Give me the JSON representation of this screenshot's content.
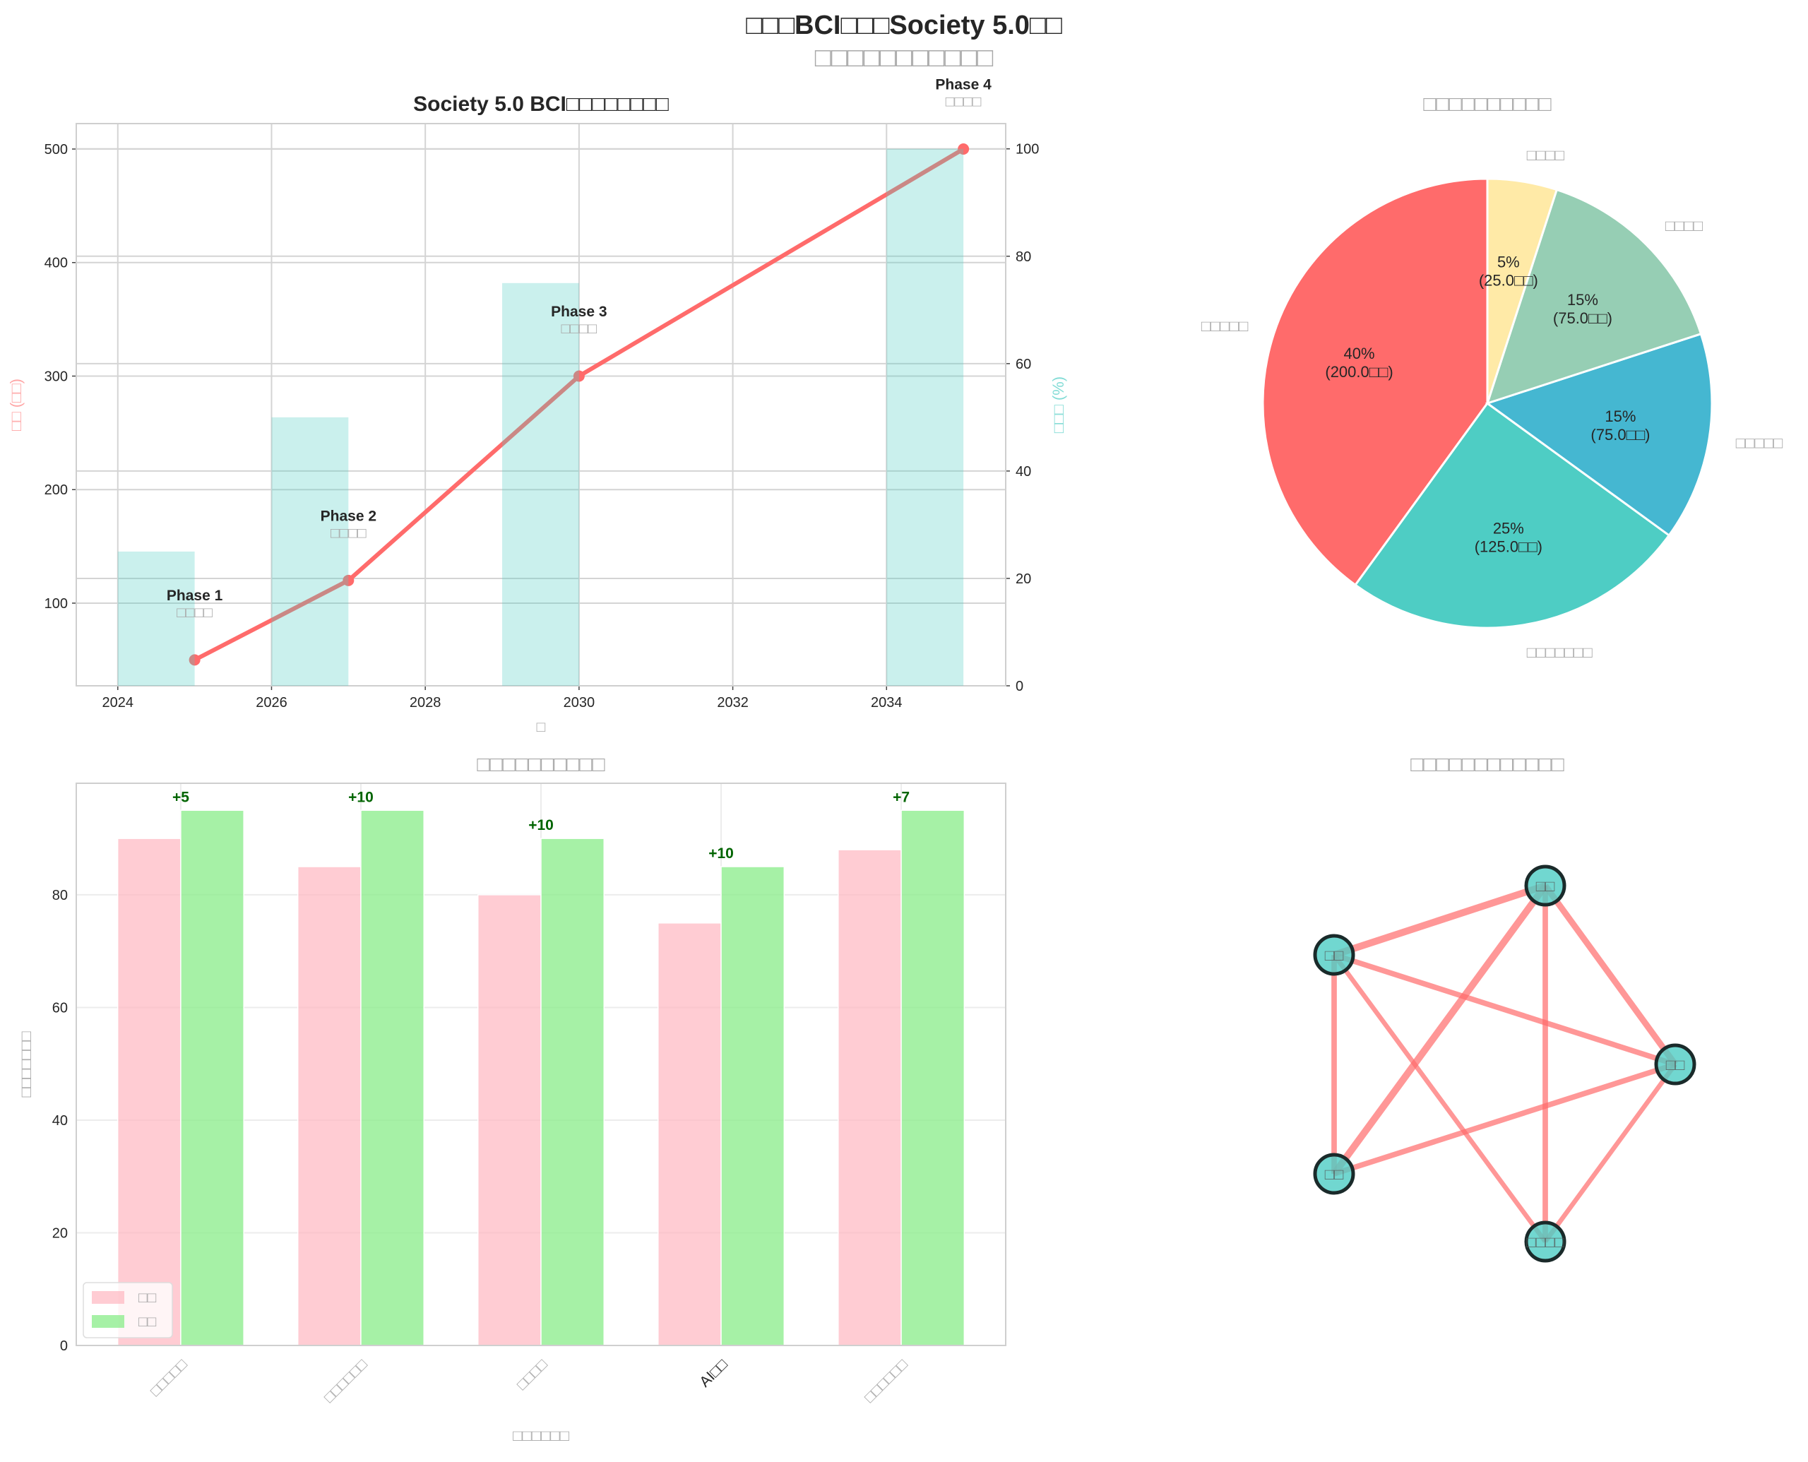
{
  "figure": {
    "title_line1": "□□□BCI□□□Society 5.0□□",
    "title_line2": "□□□□□□□□□□□"
  },
  "chart_data": [
    {
      "type": "line",
      "title": "Society 5.0 BCI□□□□□□□□",
      "xlabel": "□",
      "ylabel": "□□ (□□)",
      "y2label": "□□□ (%)",
      "xlim": [
        2023.46,
        2035.55
      ],
      "ylim": [
        27.2,
        522.4
      ],
      "y2lim": [
        0,
        104.7
      ],
      "xticks": [
        2024,
        2026,
        2028,
        2030,
        2032,
        2034
      ],
      "yticks": [
        100,
        200,
        300,
        400,
        500
      ],
      "y2ticks": [
        0,
        20,
        40,
        60,
        80,
        100
      ],
      "grid": true,
      "series": [
        {
          "name": "□□",
          "kind": "line",
          "color": "#FF6B6B",
          "x": [
            2025,
            2027,
            2030,
            2035
          ],
          "y": [
            50,
            120,
            300,
            500
          ]
        },
        {
          "name": "□□□",
          "kind": "bar",
          "axis": "right",
          "color": "#4ECDC4",
          "x": [
            2025,
            2027,
            2030,
            2035
          ],
          "y": [
            25,
            50,
            75,
            100
          ]
        }
      ],
      "annotations": [
        {
          "phase": "Phase 1",
          "label": "□□□□",
          "x": 2025,
          "y": 100
        },
        {
          "phase": "Phase 2",
          "label": "□□□□",
          "x": 2027,
          "y": 170
        },
        {
          "phase": "Phase 3",
          "label": "□□□□",
          "x": 2030,
          "y": 350
        },
        {
          "phase": "Phase 4",
          "label": "□□□□",
          "x": 2035,
          "y": 550
        }
      ]
    },
    {
      "type": "pie",
      "title": "□□□□□□□□□□",
      "labels": [
        "□□□□□",
        "□□□□□□□",
        "□□□□□",
        "□□□□",
        "□□□□"
      ],
      "values": [
        200,
        125,
        75,
        75,
        25
      ],
      "pct_labels": [
        "40%",
        "25%",
        "15%",
        "15%",
        "5%"
      ],
      "value_labels": [
        "(200.0□□)",
        "(125.0□□)",
        "(75.0□□)",
        "(75.0□□)",
        "(25.0□□)"
      ],
      "colors": [
        "#FF6B6B",
        "#4ECDC4",
        "#45B7D1",
        "#96CEB4",
        "#FFEAA7"
      ],
      "startangle": 90
    },
    {
      "type": "bar",
      "title": "□□□□□□□□□□",
      "xlabel": "□□□□□□",
      "ylabel": "□□□□□□□",
      "categories": [
        "□□□□□",
        "□□□□□□",
        "□□□□",
        "AI□□",
        "□□□□□□"
      ],
      "ylim": [
        0,
        99.8
      ],
      "yticks": [
        0,
        20,
        40,
        60,
        80
      ],
      "series": [
        {
          "name": "□□",
          "color": "#FFB6C1",
          "values": [
            90,
            85,
            80,
            75,
            88
          ]
        },
        {
          "name": "□□",
          "color": "#90EE90",
          "values": [
            95,
            95,
            90,
            85,
            95
          ]
        }
      ],
      "diff_labels": [
        "+5",
        "+10",
        "+10",
        "+10",
        "+7"
      ],
      "legend": "lower-left",
      "grid": true
    }
  ],
  "network": {
    "title": "□□□□□□□□□□□□",
    "nodes": [
      {
        "id": "top",
        "label": "□□"
      },
      {
        "id": "upper-left",
        "label": "□□"
      },
      {
        "id": "right",
        "label": "□□"
      },
      {
        "id": "lower-left",
        "label": "□□"
      },
      {
        "id": "bottom",
        "label": "□□□□"
      }
    ],
    "edges": [
      [
        "top",
        "upper-left",
        0.9
      ],
      [
        "top",
        "lower-left",
        0.9
      ],
      [
        "top",
        "bottom",
        0.7
      ],
      [
        "top",
        "right",
        0.8
      ],
      [
        "upper-left",
        "right",
        0.7
      ],
      [
        "upper-left",
        "lower-left",
        0.7
      ],
      [
        "upper-left",
        "bottom",
        0.6
      ],
      [
        "lower-left",
        "right",
        0.7
      ],
      [
        "right",
        "bottom",
        0.6
      ]
    ],
    "node_color": "#4ECDC4",
    "edge_color": "#FF6B6B"
  }
}
